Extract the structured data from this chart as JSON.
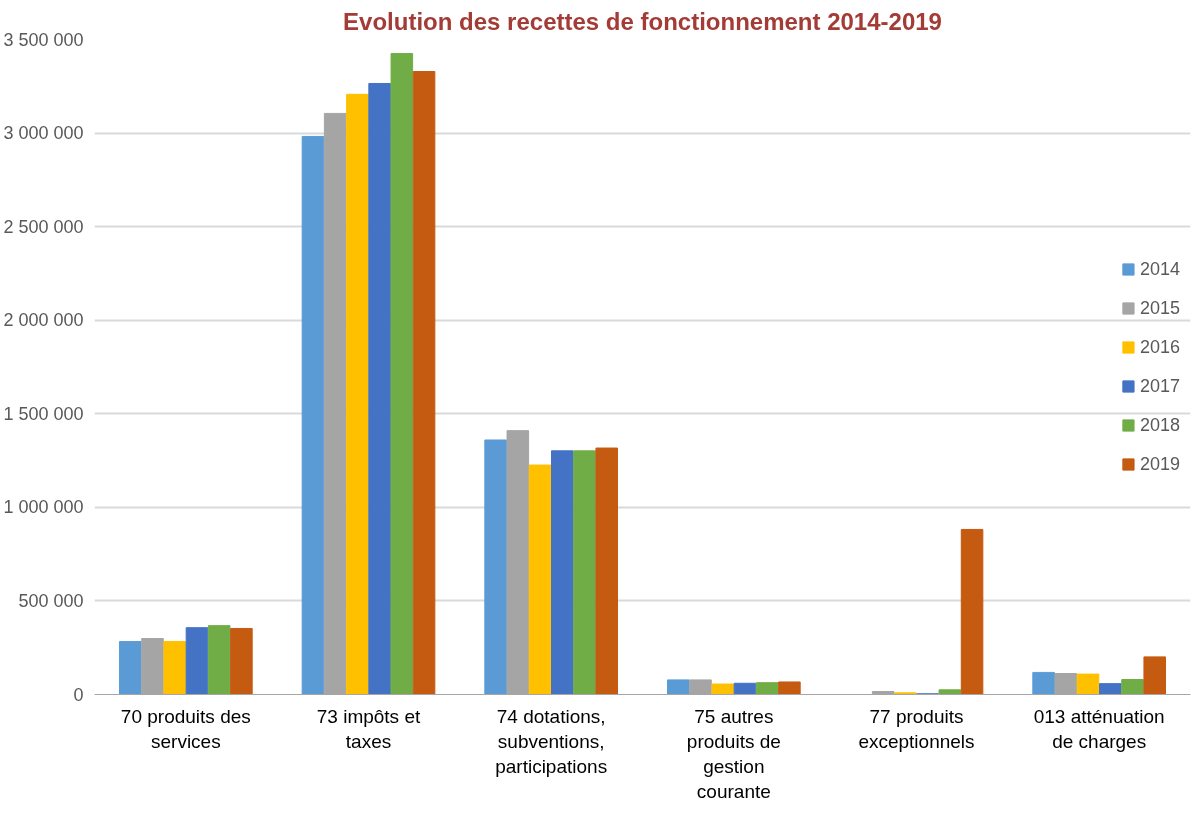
{
  "chart_data": {
    "type": "bar",
    "title": "Evolution des recettes de fonctionnement 2014-2019",
    "categories": [
      "70 produits des services",
      "73 impôts et taxes",
      "74 dotations, subventions, participations",
      "75 autres produits de gestion courante",
      "77 produits exceptionnels",
      "013 atténuation de charges"
    ],
    "series": [
      {
        "name": "2014",
        "color": "#5b9bd5",
        "values": [
          283000,
          2982000,
          1360000,
          78000,
          0,
          118000
        ]
      },
      {
        "name": "2015",
        "color": "#a5a5a5",
        "values": [
          299000,
          3105000,
          1410000,
          78000,
          16000,
          112000
        ]
      },
      {
        "name": "2016",
        "color": "#ffc000",
        "values": [
          283000,
          3207000,
          1226000,
          56000,
          9000,
          109000
        ]
      },
      {
        "name": "2017",
        "color": "#4472c4",
        "values": [
          357000,
          3265000,
          1302000,
          60000,
          4000,
          58000
        ]
      },
      {
        "name": "2018",
        "color": "#70ad47",
        "values": [
          368000,
          3425000,
          1302000,
          63000,
          25000,
          80000
        ]
      },
      {
        "name": "2019",
        "color": "#c55a11",
        "values": [
          353000,
          3329000,
          1317000,
          67000,
          882000,
          201000
        ]
      }
    ],
    "ylim": [
      0,
      3500000
    ],
    "yticks": [
      {
        "value": 0,
        "label": "0"
      },
      {
        "value": 500000,
        "label": "500 000"
      },
      {
        "value": 1000000,
        "label": "1 000 000"
      },
      {
        "value": 1500000,
        "label": "1 500 000"
      },
      {
        "value": 2000000,
        "label": "2 000 000"
      },
      {
        "value": 2500000,
        "label": "2 500 000"
      },
      {
        "value": 3000000,
        "label": "3 000 000"
      },
      {
        "value": 3500000,
        "label": "3 500 000"
      }
    ],
    "grid": "y",
    "legend": "right"
  }
}
